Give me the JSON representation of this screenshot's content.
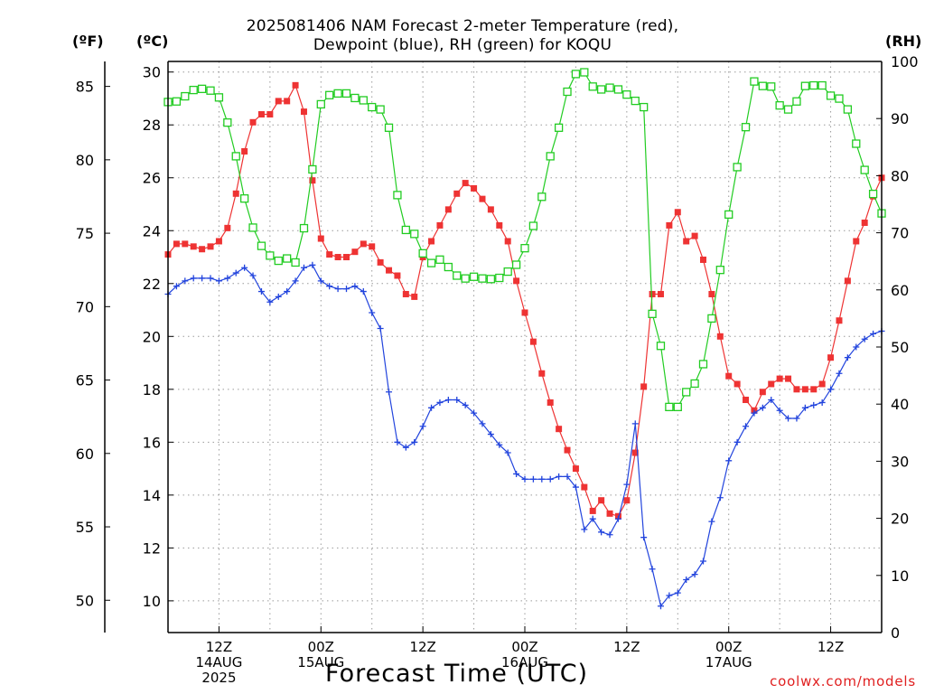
{
  "title_lines": [
    "2025081406 NAM Forecast 2-meter Temperature (red),",
    "Dewpoint (blue), RH (green) for KOQU"
  ],
  "units": {
    "f": "(ºF)",
    "c": "(ºC)",
    "rh": "(RH)"
  },
  "xlabel": "Forecast Time (UTC)",
  "credit": "coolwx.com/models",
  "colors": {
    "temperature": "#ee3333",
    "dewpoint": "#2244dd",
    "rh": "#22cc22",
    "grid": "#9a9a9a"
  },
  "chart_data": {
    "type": "line",
    "title": "2025081406 NAM Forecast 2-meter Temperature (red), Dewpoint (blue), RH (green) for KOQU",
    "xlabel": "Forecast Time (UTC)",
    "x_unit": "forecast hour from 2025-08-14 06Z",
    "xlim": [
      0,
      84
    ],
    "x_ticks": [
      {
        "x": 6,
        "lines": [
          "12Z",
          "14AUG",
          "2025"
        ]
      },
      {
        "x": 18,
        "lines": [
          "00Z",
          "15AUG"
        ]
      },
      {
        "x": 30,
        "lines": [
          "12Z"
        ]
      },
      {
        "x": 42,
        "lines": [
          "00Z",
          "16AUG"
        ]
      },
      {
        "x": 54,
        "lines": [
          "12Z"
        ]
      },
      {
        "x": 66,
        "lines": [
          "00Z",
          "17AUG"
        ]
      },
      {
        "x": 78,
        "lines": [
          "12Z"
        ]
      }
    ],
    "y_left_celsius": {
      "label": "(ºC)",
      "lim": [
        8.8,
        30.4
      ],
      "ticks": [
        10,
        12,
        14,
        16,
        18,
        20,
        22,
        24,
        26,
        28,
        30
      ]
    },
    "y_left_fahrenheit": {
      "label": "(ºF)",
      "lim": [
        47.8,
        86.7
      ],
      "ticks": [
        50,
        55,
        60,
        65,
        70,
        75,
        80,
        85
      ]
    },
    "y_right_rh": {
      "label": "(RH)",
      "lim": [
        0,
        100
      ],
      "ticks": [
        0,
        10,
        20,
        30,
        40,
        50,
        60,
        70,
        80,
        90,
        100
      ]
    },
    "grid": true,
    "series": [
      {
        "name": "Temperature",
        "unit": "ºC",
        "axis": "celsius",
        "color": "#ee3333",
        "marker": "filled-square",
        "x": [
          0,
          1,
          2,
          3,
          4,
          5,
          6,
          7,
          8,
          9,
          10,
          11,
          12,
          13,
          14,
          15,
          16,
          17,
          18,
          19,
          20,
          21,
          22,
          23,
          24,
          25,
          26,
          27,
          28,
          29,
          30,
          31,
          32,
          33,
          34,
          35,
          36,
          37,
          38,
          39,
          40,
          41,
          42,
          43,
          44,
          45,
          46,
          47,
          48,
          49,
          50,
          51,
          52,
          53,
          54,
          55,
          56,
          57,
          58,
          59,
          60,
          61,
          62,
          63,
          64,
          65,
          66,
          67,
          68,
          69,
          70,
          71,
          72,
          73,
          74,
          75,
          76,
          77,
          78,
          79,
          80,
          81,
          82,
          83,
          84
        ],
        "values": [
          23.1,
          23.5,
          23.5,
          23.4,
          23.3,
          23.4,
          23.6,
          24.1,
          25.4,
          27.0,
          28.1,
          28.4,
          28.4,
          28.9,
          28.9,
          29.5,
          28.5,
          25.9,
          23.7,
          23.1,
          23.0,
          23.0,
          23.2,
          23.5,
          23.4,
          22.8,
          22.5,
          22.3,
          21.6,
          21.5,
          23.0,
          23.6,
          24.2,
          24.8,
          25.4,
          25.8,
          25.6,
          25.2,
          24.8,
          24.2,
          23.6,
          22.1,
          20.9,
          19.8,
          18.6,
          17.5,
          16.5,
          15.7,
          15.0,
          14.3,
          13.4,
          13.8,
          13.3,
          13.2,
          13.8,
          15.6,
          18.1,
          21.6,
          21.6,
          24.2,
          24.7,
          23.6,
          23.8,
          22.9,
          21.6,
          20.0,
          18.5,
          18.2,
          17.6,
          17.2,
          17.9,
          18.2,
          18.4,
          18.4,
          18.0,
          18.0,
          18.0,
          18.2,
          19.2,
          20.6,
          22.1,
          23.6,
          24.3,
          25.3,
          26.0
        ]
      },
      {
        "name": "Dewpoint",
        "unit": "ºC",
        "axis": "celsius",
        "color": "#2244dd",
        "marker": "plus",
        "x": [
          0,
          1,
          2,
          3,
          4,
          5,
          6,
          7,
          8,
          9,
          10,
          11,
          12,
          13,
          14,
          15,
          16,
          17,
          18,
          19,
          20,
          21,
          22,
          23,
          24,
          25,
          26,
          27,
          28,
          29,
          30,
          31,
          32,
          33,
          34,
          35,
          36,
          37,
          38,
          39,
          40,
          41,
          42,
          43,
          44,
          45,
          46,
          47,
          48,
          49,
          50,
          51,
          52,
          53,
          54,
          55,
          56,
          57,
          58,
          59,
          60,
          61,
          62,
          63,
          64,
          65,
          66,
          67,
          68,
          69,
          70,
          71,
          72,
          73,
          74,
          75,
          76,
          77,
          78,
          79,
          80,
          81,
          82,
          83,
          84
        ],
        "values": [
          21.6,
          21.9,
          22.1,
          22.2,
          22.2,
          22.2,
          22.1,
          22.2,
          22.4,
          22.6,
          22.3,
          21.7,
          21.3,
          21.5,
          21.7,
          22.1,
          22.6,
          22.7,
          22.1,
          21.9,
          21.8,
          21.8,
          21.9,
          21.7,
          20.9,
          20.3,
          17.9,
          16.0,
          15.8,
          16.0,
          16.6,
          17.3,
          17.5,
          17.6,
          17.6,
          17.4,
          17.1,
          16.7,
          16.3,
          15.9,
          15.6,
          14.8,
          14.6,
          14.6,
          14.6,
          14.6,
          14.7,
          14.7,
          14.3,
          12.7,
          13.1,
          12.6,
          12.5,
          13.1,
          14.4,
          16.7,
          12.4,
          11.2,
          9.8,
          10.2,
          10.3,
          10.8,
          11.0,
          11.5,
          13.0,
          13.9,
          15.3,
          16.0,
          16.6,
          17.1,
          17.3,
          17.6,
          17.2,
          16.9,
          16.9,
          17.3,
          17.4,
          17.5,
          18.0,
          18.6,
          19.2,
          19.6,
          19.9,
          20.1,
          20.2
        ]
      },
      {
        "name": "RH",
        "unit": "%",
        "axis": "rh",
        "color": "#22cc22",
        "marker": "open-square",
        "x": [
          0,
          1,
          2,
          3,
          4,
          5,
          6,
          7,
          8,
          9,
          10,
          11,
          12,
          13,
          14,
          15,
          16,
          17,
          18,
          19,
          20,
          21,
          22,
          23,
          24,
          25,
          26,
          27,
          28,
          29,
          30,
          31,
          32,
          33,
          34,
          35,
          36,
          37,
          38,
          39,
          40,
          41,
          42,
          43,
          44,
          45,
          46,
          47,
          48,
          49,
          50,
          51,
          52,
          53,
          54,
          55,
          56,
          57,
          58,
          59,
          60,
          61,
          62,
          63,
          64,
          65,
          66,
          67,
          68,
          69,
          70,
          71,
          72,
          73,
          74,
          75,
          76,
          77,
          78,
          79,
          80,
          81,
          82,
          83,
          84
        ],
        "values": [
          92.9,
          93.0,
          93.9,
          95.0,
          95.2,
          94.9,
          93.7,
          89.3,
          83.4,
          76.0,
          70.9,
          67.7,
          66.0,
          65.1,
          65.5,
          64.8,
          70.8,
          81.1,
          92.5,
          94.1,
          94.4,
          94.4,
          93.6,
          93.2,
          92.0,
          91.6,
          88.4,
          76.6,
          70.5,
          69.8,
          66.4,
          64.7,
          65.3,
          64.0,
          62.5,
          62.0,
          62.3,
          62.0,
          61.9,
          62.1,
          63.2,
          64.4,
          67.3,
          71.2,
          76.3,
          83.4,
          88.4,
          94.7,
          97.8,
          98.1,
          95.6,
          95.1,
          95.4,
          95.1,
          94.2,
          93.1,
          92.0,
          55.8,
          50.2,
          39.5,
          39.5,
          42.1,
          43.6,
          47.0,
          55.0,
          63.5,
          73.2,
          81.5,
          88.5,
          96.5,
          95.7,
          95.6,
          92.3,
          91.6,
          93.0,
          95.7,
          95.8,
          95.8,
          94.0,
          93.5,
          91.6,
          85.6,
          81.0,
          76.8,
          73.4
        ]
      }
    ]
  }
}
